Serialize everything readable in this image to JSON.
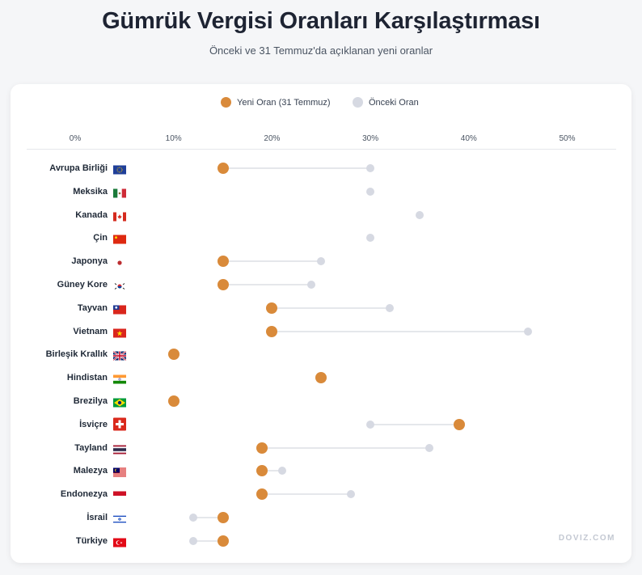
{
  "header": {
    "title": "Gümrük Vergisi Oranları Karşılaştırması",
    "subtitle": "Önceki ve 31 Temmuz'da açıklanan yeni oranlar"
  },
  "legend": {
    "new_label": "Yeni Oran (31 Temmuz)",
    "old_label": "Önceki Oran"
  },
  "colors": {
    "new": "#d98a3a",
    "old": "#d6d9e2",
    "connector": "#e5e7eb"
  },
  "watermark": "DOVIZ.COM",
  "chart_data": {
    "type": "dumbbell",
    "xlim": [
      0,
      55
    ],
    "ticks": [
      "0%",
      "10%",
      "20%",
      "30%",
      "40%",
      "50%"
    ],
    "tick_values": [
      0,
      10,
      20,
      30,
      40,
      50
    ],
    "series": [
      {
        "name": "Yeni Oran (31 Temmuz)",
        "values": [
          15,
          null,
          null,
          null,
          15,
          15,
          20,
          20,
          10,
          25,
          10,
          39,
          19,
          19,
          19,
          15,
          15
        ]
      },
      {
        "name": "Önceki Oran",
        "values": [
          30,
          30,
          35,
          30,
          25,
          24,
          32,
          46,
          null,
          null,
          null,
          30,
          36,
          21,
          28,
          12,
          12
        ]
      }
    ],
    "categories": [
      "Avrupa Birliği",
      "Meksika",
      "Kanada",
      "Çin",
      "Japonya",
      "Güney Kore",
      "Tayvan",
      "Vietnam",
      "Birleşik Krallık",
      "Hindistan",
      "Brezilya",
      "İsviçre",
      "Tayland",
      "Malezya",
      "Endonezya",
      "İsrail",
      "Türkiye"
    ],
    "flags": [
      "eu-flag-icon",
      "mexico-flag-icon",
      "canada-flag-icon",
      "china-flag-icon",
      "japan-flag-icon",
      "south-korea-flag-icon",
      "taiwan-flag-icon",
      "vietnam-flag-icon",
      "uk-flag-icon",
      "india-flag-icon",
      "brazil-flag-icon",
      "switzerland-flag-icon",
      "thailand-flag-icon",
      "malaysia-flag-icon",
      "indonesia-flag-icon",
      "israel-flag-icon",
      "turkey-flag-icon"
    ]
  }
}
